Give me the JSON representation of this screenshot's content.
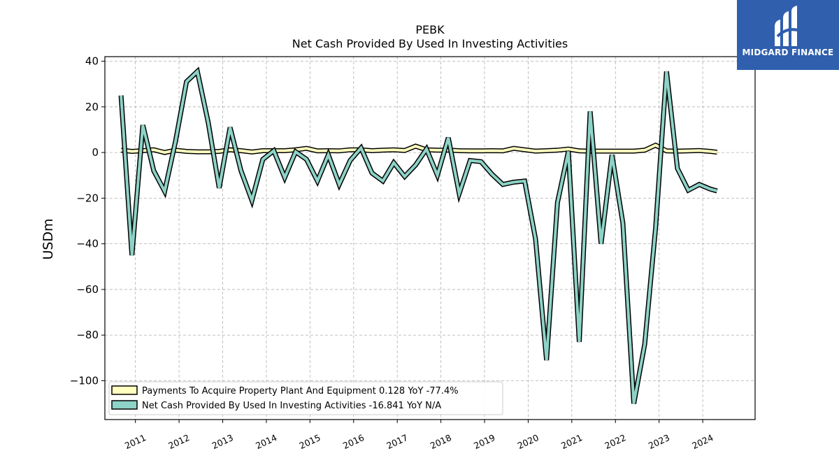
{
  "logo": {
    "text": "MIDGARD FINANCE",
    "color": "#2f5fad"
  },
  "chart_data": {
    "type": "line",
    "title": "PEBK",
    "subtitle": "Net Cash Provided By Used In Investing Activities",
    "ylabel": "USDm",
    "xlabel": "",
    "ylim": [
      -117,
      42
    ],
    "xlim": [
      2010.3,
      2025.2
    ],
    "yticks": [
      40,
      20,
      0,
      -20,
      -40,
      -60,
      -80,
      -100
    ],
    "ytick_labels": [
      "40",
      "20",
      "0",
      "−20",
      "−40",
      "−60",
      "−80",
      "−100"
    ],
    "xticks": [
      2011,
      2012,
      2013,
      2014,
      2015,
      2016,
      2017,
      2018,
      2019,
      2020,
      2021,
      2022,
      2023,
      2024
    ],
    "xtick_labels": [
      "2011",
      "2012",
      "2013",
      "2014",
      "2015",
      "2016",
      "2017",
      "2018",
      "2019",
      "2020",
      "2021",
      "2022",
      "2023",
      "2024"
    ],
    "grid": true,
    "legend_position": "lower-left",
    "series": [
      {
        "name": "Payments To Acquire Property Plant And Equipment",
        "legend": "Payments To Acquire Property Plant And Equipment  0.128 YoY -77.4%",
        "color": "#ffffbf",
        "x": [
          2010.67,
          2010.92,
          2011.17,
          2011.42,
          2011.67,
          2011.92,
          2012.17,
          2012.42,
          2012.67,
          2012.92,
          2013.17,
          2013.42,
          2013.67,
          2013.92,
          2014.17,
          2014.42,
          2014.67,
          2014.92,
          2015.17,
          2015.42,
          2015.67,
          2015.92,
          2016.17,
          2016.42,
          2016.67,
          2016.92,
          2017.17,
          2017.42,
          2017.67,
          2017.92,
          2018.17,
          2018.42,
          2018.67,
          2018.92,
          2019.17,
          2019.42,
          2019.67,
          2019.92,
          2020.17,
          2020.42,
          2020.67,
          2020.92,
          2021.17,
          2021.42,
          2021.67,
          2021.92,
          2022.17,
          2022.42,
          2022.67,
          2022.92,
          2023.17,
          2023.42,
          2023.67,
          2023.92,
          2024.17,
          2024.33
        ],
        "values": [
          1.0,
          0.5,
          0.8,
          1.2,
          0.0,
          1.0,
          0.5,
          0.3,
          0.3,
          0.5,
          1.2,
          0.8,
          0.2,
          0.8,
          0.8,
          0.8,
          1.2,
          1.8,
          0.7,
          0.8,
          0.7,
          1.2,
          1.2,
          0.8,
          1.0,
          1.2,
          0.9,
          2.8,
          1.2,
          1.0,
          1.0,
          0.8,
          0.7,
          0.7,
          0.8,
          0.7,
          1.8,
          1.2,
          0.6,
          0.8,
          1.0,
          1.5,
          0.7,
          0.6,
          0.6,
          0.6,
          0.6,
          0.6,
          1.0,
          3.2,
          0.7,
          0.6,
          0.7,
          0.9,
          0.5,
          0.128
        ]
      },
      {
        "name": "Net Cash Provided By Used In Investing Activities",
        "legend": "Net Cash Provided By Used In Investing Activities  -16.841 YoY N/A",
        "color": "#8dd3c7",
        "x": [
          2010.67,
          2010.92,
          2011.17,
          2011.42,
          2011.67,
          2011.92,
          2012.17,
          2012.42,
          2012.67,
          2012.92,
          2013.17,
          2013.42,
          2013.67,
          2013.92,
          2014.17,
          2014.42,
          2014.67,
          2014.92,
          2015.17,
          2015.42,
          2015.67,
          2015.92,
          2016.17,
          2016.42,
          2016.67,
          2016.92,
          2017.17,
          2017.42,
          2017.67,
          2017.92,
          2018.17,
          2018.42,
          2018.67,
          2018.92,
          2019.17,
          2019.42,
          2019.67,
          2019.92,
          2020.17,
          2020.42,
          2020.67,
          2020.92,
          2021.17,
          2021.42,
          2021.67,
          2021.92,
          2022.17,
          2022.42,
          2022.67,
          2022.92,
          2023.17,
          2023.42,
          2023.67,
          2023.92,
          2024.17,
          2024.33
        ],
        "values": [
          25.0,
          -45.0,
          12.0,
          -8.0,
          -17.0,
          5.0,
          31.0,
          35.5,
          13.0,
          -15.5,
          11.0,
          -8.0,
          -21.0,
          -3.0,
          0.8,
          -11.0,
          0.3,
          -3.0,
          -12.5,
          -1.0,
          -14.0,
          -3.5,
          2.0,
          -9.0,
          -12.5,
          -4.5,
          -10.5,
          -5.5,
          1.5,
          -10.0,
          6.5,
          -18.0,
          -3.5,
          -4.0,
          -9.5,
          -14.0,
          -13.0,
          -12.5,
          -38.0,
          -91.0,
          -22.0,
          0.5,
          -83.0,
          18.0,
          -40.0,
          -1.0,
          -31.0,
          -110.0,
          -84.0,
          -33.0,
          35.5,
          -7.0,
          -16.5,
          -14.0,
          -16.0,
          -16.841
        ]
      }
    ]
  }
}
